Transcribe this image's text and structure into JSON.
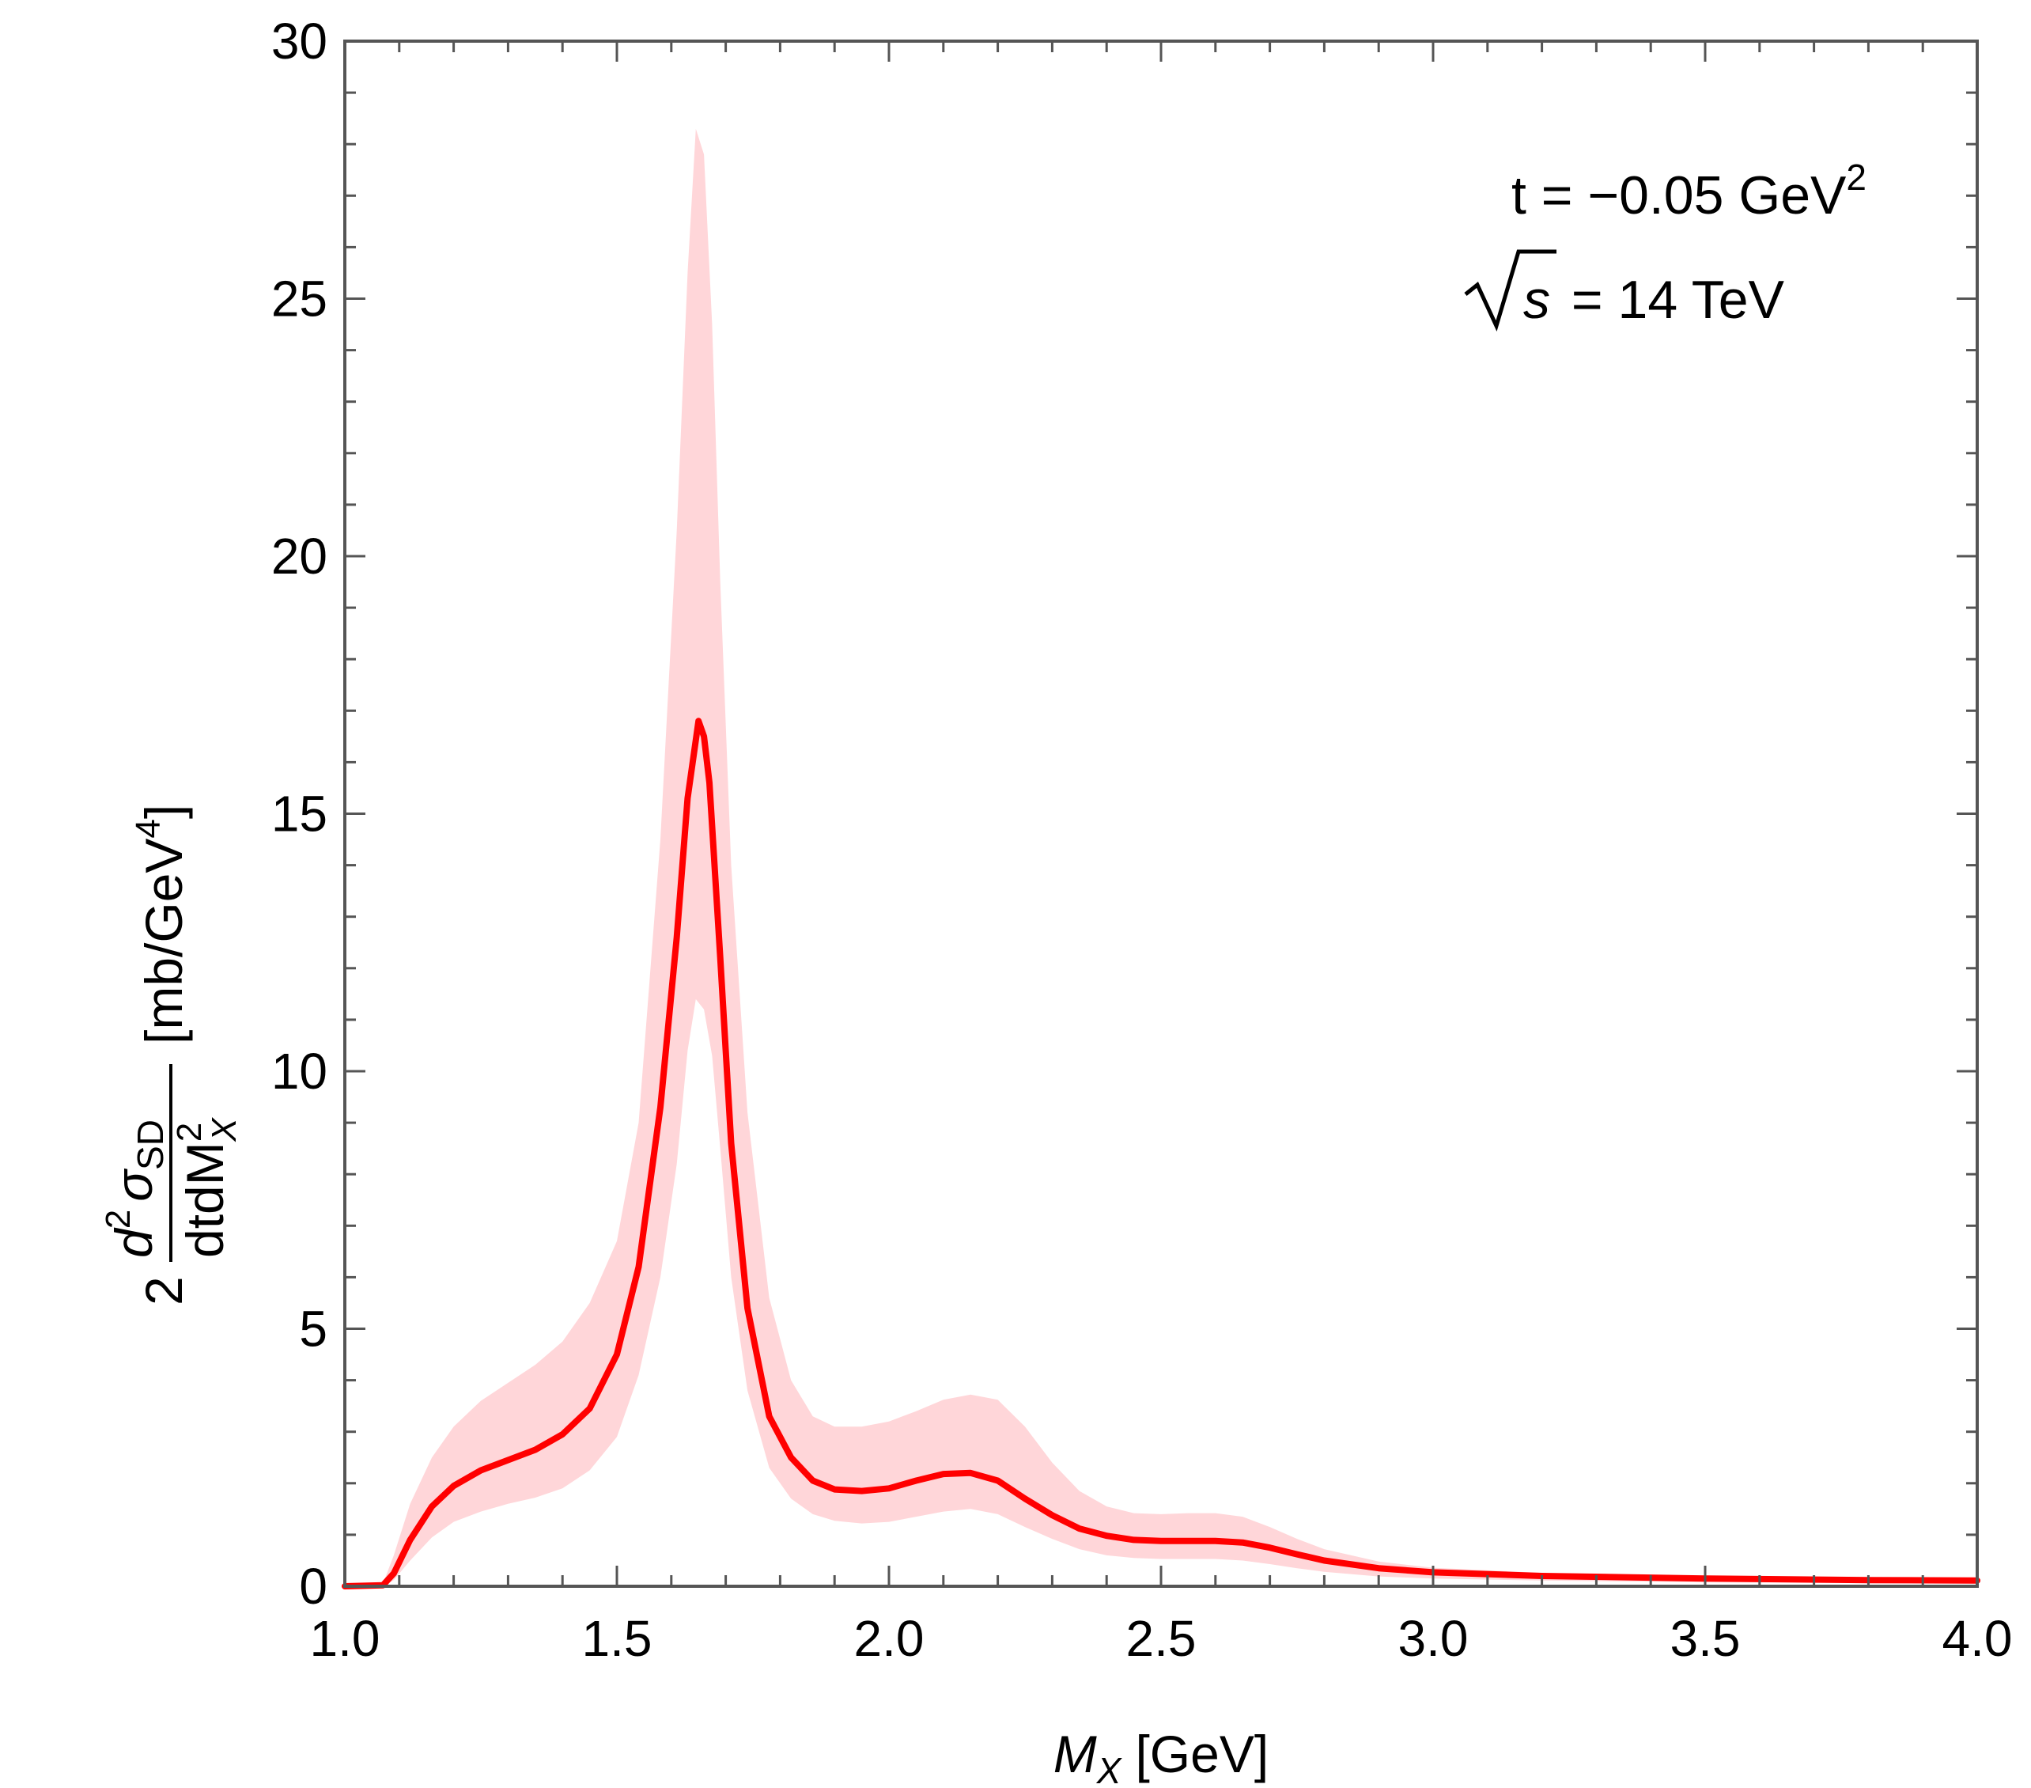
{
  "chart_data": {
    "type": "line",
    "title": "",
    "xlabel": {
      "symbol": "M",
      "subscript": "X",
      "unit": "[GeV]"
    },
    "ylabel": {
      "prefix": "2",
      "numerator_d": "d",
      "numerator_pow": "2",
      "numerator_sigma": "σ",
      "numerator_sub": "SD",
      "denominator": "dtdM",
      "denominator_pow": "2",
      "denominator_sub": "X",
      "unit_open": "[mb/GeV",
      "unit_pow": "4",
      "unit_close": "]"
    },
    "xlim": [
      1.0,
      4.0
    ],
    "ylim": [
      0,
      30
    ],
    "x_ticks": [
      "1.0",
      "1.5",
      "2.0",
      "2.5",
      "3.0",
      "3.5",
      "4.0"
    ],
    "y_ticks": [
      "0",
      "5",
      "10",
      "15",
      "20",
      "25",
      "30"
    ],
    "annotations": {
      "t_text": "t = −0.05 GeV",
      "t_pow": "2",
      "sqrt_symbol": "√",
      "sqrt_arg": "s",
      "sqrt_rest": " = 14 TeV"
    },
    "colors": {
      "line": "#ff0000",
      "band": "#ffd6d9",
      "frame": "#555555"
    },
    "series": [
      {
        "name": "central",
        "x": [
          1.0,
          1.07,
          1.09,
          1.12,
          1.16,
          1.2,
          1.25,
          1.3,
          1.35,
          1.4,
          1.45,
          1.5,
          1.54,
          1.58,
          1.61,
          1.63,
          1.65,
          1.66,
          1.67,
          1.69,
          1.71,
          1.74,
          1.78,
          1.82,
          1.86,
          1.9,
          1.95,
          2.0,
          2.05,
          2.1,
          2.15,
          2.2,
          2.25,
          2.3,
          2.35,
          2.4,
          2.45,
          2.5,
          2.55,
          2.6,
          2.65,
          2.7,
          2.75,
          2.8,
          2.9,
          3.0,
          3.2,
          3.5,
          3.8,
          4.0
        ],
        "y": [
          0,
          0.02,
          0.25,
          0.9,
          1.55,
          1.95,
          2.25,
          2.45,
          2.65,
          2.95,
          3.45,
          4.5,
          6.2,
          9.3,
          12.6,
          15.3,
          16.8,
          16.5,
          15.6,
          12.2,
          8.6,
          5.4,
          3.3,
          2.5,
          2.05,
          1.88,
          1.85,
          1.9,
          2.05,
          2.18,
          2.2,
          2.05,
          1.7,
          1.38,
          1.12,
          0.98,
          0.9,
          0.88,
          0.88,
          0.88,
          0.85,
          0.75,
          0.62,
          0.5,
          0.35,
          0.27,
          0.2,
          0.15,
          0.12,
          0.11
        ]
      },
      {
        "name": "upper",
        "x": [
          1.0,
          1.07,
          1.09,
          1.12,
          1.16,
          1.2,
          1.25,
          1.3,
          1.35,
          1.4,
          1.45,
          1.5,
          1.54,
          1.58,
          1.61,
          1.63,
          1.645,
          1.66,
          1.675,
          1.69,
          1.71,
          1.74,
          1.78,
          1.82,
          1.86,
          1.9,
          1.95,
          2.0,
          2.05,
          2.1,
          2.15,
          2.2,
          2.25,
          2.3,
          2.35,
          2.4,
          2.45,
          2.5,
          2.55,
          2.6,
          2.65,
          2.7,
          2.75,
          2.8,
          2.9,
          3.0,
          3.2,
          3.5,
          3.8,
          4.0
        ],
        "y": [
          0,
          0.05,
          0.6,
          1.6,
          2.5,
          3.1,
          3.6,
          3.95,
          4.3,
          4.75,
          5.5,
          6.7,
          9.0,
          14.5,
          20.5,
          25.5,
          28.3,
          27.8,
          24.5,
          19.5,
          14.0,
          9.2,
          5.6,
          4.0,
          3.3,
          3.1,
          3.1,
          3.2,
          3.4,
          3.62,
          3.72,
          3.62,
          3.1,
          2.4,
          1.85,
          1.55,
          1.42,
          1.4,
          1.42,
          1.42,
          1.35,
          1.15,
          0.92,
          0.72,
          0.48,
          0.36,
          0.26,
          0.2,
          0.16,
          0.15
        ]
      },
      {
        "name": "lower",
        "x": [
          1.0,
          1.07,
          1.09,
          1.12,
          1.16,
          1.2,
          1.25,
          1.3,
          1.35,
          1.4,
          1.45,
          1.5,
          1.54,
          1.58,
          1.61,
          1.63,
          1.645,
          1.66,
          1.675,
          1.69,
          1.71,
          1.74,
          1.78,
          1.82,
          1.86,
          1.9,
          1.95,
          2.0,
          2.05,
          2.1,
          2.15,
          2.2,
          2.25,
          2.3,
          2.35,
          2.4,
          2.45,
          2.5,
          2.55,
          2.6,
          2.65,
          2.7,
          2.75,
          2.8,
          2.9,
          3.0,
          3.2,
          3.5,
          3.8,
          4.0
        ],
        "y": [
          0,
          0.0,
          0.12,
          0.5,
          0.95,
          1.25,
          1.45,
          1.6,
          1.72,
          1.9,
          2.25,
          2.9,
          4.1,
          6.0,
          8.2,
          10.4,
          11.4,
          11.2,
          10.3,
          8.5,
          6.0,
          3.8,
          2.3,
          1.7,
          1.4,
          1.27,
          1.22,
          1.25,
          1.35,
          1.45,
          1.5,
          1.4,
          1.15,
          0.92,
          0.72,
          0.6,
          0.55,
          0.53,
          0.53,
          0.53,
          0.5,
          0.43,
          0.35,
          0.28,
          0.19,
          0.15,
          0.11,
          0.08,
          0.07,
          0.06
        ]
      }
    ]
  }
}
